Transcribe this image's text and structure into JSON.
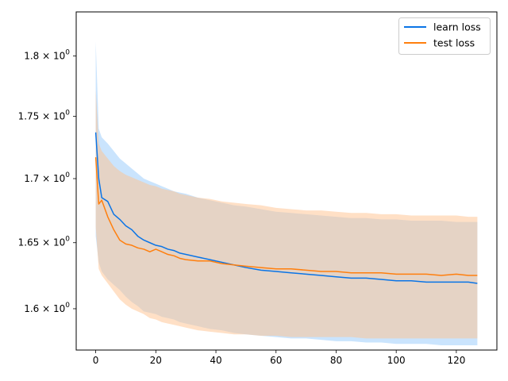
{
  "chart_data": {
    "type": "line",
    "title": "",
    "xlabel": "",
    "ylabel": "",
    "yscale": "log",
    "xlim": [
      -6.5,
      133.5
    ],
    "ylim": [
      1.5695,
      1.8373
    ],
    "grid": false,
    "legend_position": "top-right",
    "x_ticks": [
      0,
      20,
      40,
      60,
      80,
      100,
      120
    ],
    "x_tick_labels": [
      "0",
      "20",
      "40",
      "60",
      "80",
      "100",
      "120"
    ],
    "y_ticks": [
      1.8,
      1.75,
      1.7,
      1.65,
      1.6
    ],
    "y_tick_labels": [
      {
        "mantissa": "1.8",
        "times": " × 10",
        "exp": "0"
      },
      {
        "mantissa": "1.75",
        "times": " × 10",
        "exp": "0"
      },
      {
        "mantissa": "1.7",
        "times": " × 10",
        "exp": "0"
      },
      {
        "mantissa": "1.65",
        "times": " × 10",
        "exp": "0"
      },
      {
        "mantissa": "1.6",
        "times": " × 10",
        "exp": "0"
      }
    ],
    "series": [
      {
        "name": "learn loss",
        "color": "#0a74e6",
        "band_color": "#9fcdfb",
        "x": [
          0,
          1,
          2,
          4,
          6,
          8,
          10,
          12,
          14,
          16,
          18,
          20,
          22,
          24,
          26,
          28,
          30,
          34,
          38,
          42,
          46,
          50,
          55,
          60,
          65,
          70,
          75,
          80,
          85,
          90,
          95,
          100,
          105,
          110,
          115,
          120,
          124,
          127
        ],
        "y": [
          1.737,
          1.7,
          1.685,
          1.682,
          1.672,
          1.668,
          1.663,
          1.66,
          1.655,
          1.652,
          1.65,
          1.648,
          1.647,
          1.645,
          1.644,
          1.642,
          1.641,
          1.639,
          1.637,
          1.635,
          1.633,
          1.631,
          1.629,
          1.628,
          1.627,
          1.626,
          1.625,
          1.624,
          1.623,
          1.623,
          1.622,
          1.621,
          1.621,
          1.62,
          1.62,
          1.62,
          1.62,
          1.619
        ],
        "upper": [
          1.812,
          1.74,
          1.733,
          1.728,
          1.722,
          1.716,
          1.712,
          1.708,
          1.704,
          1.7,
          1.698,
          1.696,
          1.694,
          1.692,
          1.69,
          1.689,
          1.688,
          1.685,
          1.683,
          1.681,
          1.679,
          1.678,
          1.676,
          1.674,
          1.673,
          1.672,
          1.671,
          1.67,
          1.669,
          1.669,
          1.668,
          1.668,
          1.667,
          1.667,
          1.667,
          1.666,
          1.666,
          1.666
        ],
        "lower": [
          1.655,
          1.635,
          1.628,
          1.622,
          1.618,
          1.614,
          1.609,
          1.605,
          1.602,
          1.598,
          1.597,
          1.596,
          1.594,
          1.593,
          1.592,
          1.59,
          1.589,
          1.587,
          1.585,
          1.584,
          1.582,
          1.581,
          1.58,
          1.579,
          1.578,
          1.578,
          1.577,
          1.576,
          1.576,
          1.575,
          1.575,
          1.574,
          1.574,
          1.574,
          1.573,
          1.573,
          1.573,
          1.573
        ]
      },
      {
        "name": "test loss",
        "color": "#ff7f0e",
        "band_color": "#ffc28e",
        "x": [
          0,
          1,
          2,
          4,
          6,
          8,
          10,
          12,
          14,
          16,
          18,
          20,
          22,
          24,
          26,
          28,
          30,
          34,
          38,
          42,
          46,
          50,
          55,
          60,
          65,
          70,
          75,
          80,
          85,
          90,
          95,
          100,
          105,
          110,
          115,
          120,
          124,
          127
        ],
        "y": [
          1.717,
          1.68,
          1.683,
          1.67,
          1.66,
          1.652,
          1.649,
          1.648,
          1.646,
          1.645,
          1.643,
          1.645,
          1.643,
          1.641,
          1.64,
          1.638,
          1.637,
          1.636,
          1.636,
          1.634,
          1.633,
          1.632,
          1.631,
          1.63,
          1.63,
          1.629,
          1.628,
          1.628,
          1.627,
          1.627,
          1.627,
          1.626,
          1.626,
          1.626,
          1.625,
          1.626,
          1.625,
          1.625
        ],
        "upper": [
          1.772,
          1.728,
          1.722,
          1.716,
          1.71,
          1.706,
          1.703,
          1.701,
          1.699,
          1.697,
          1.695,
          1.694,
          1.692,
          1.691,
          1.69,
          1.688,
          1.687,
          1.685,
          1.684,
          1.682,
          1.681,
          1.68,
          1.679,
          1.677,
          1.676,
          1.675,
          1.675,
          1.674,
          1.673,
          1.673,
          1.672,
          1.672,
          1.671,
          1.671,
          1.671,
          1.671,
          1.67,
          1.67
        ],
        "lower": [
          1.662,
          1.63,
          1.625,
          1.619,
          1.613,
          1.607,
          1.603,
          1.6,
          1.598,
          1.596,
          1.593,
          1.592,
          1.59,
          1.589,
          1.588,
          1.587,
          1.586,
          1.584,
          1.583,
          1.582,
          1.581,
          1.581,
          1.58,
          1.58,
          1.579,
          1.579,
          1.579,
          1.579,
          1.579,
          1.578,
          1.578,
          1.578,
          1.578,
          1.578,
          1.578,
          1.578,
          1.578,
          1.578
        ]
      }
    ]
  }
}
